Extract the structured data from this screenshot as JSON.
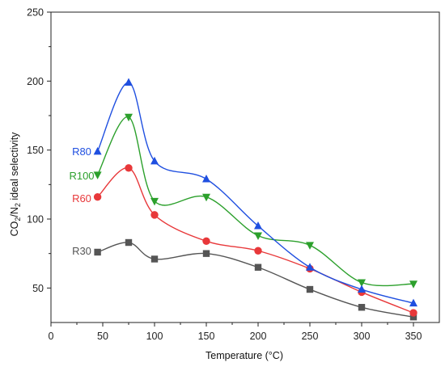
{
  "chart_data": {
    "type": "line",
    "xlabel": "Temperature (°C)",
    "ylabel": {
      "pre": "CO",
      "sub1": "2",
      "mid": "/N",
      "sub2": "2",
      "post": " ideal selectivity"
    },
    "xlim": [
      0,
      375
    ],
    "ylim": [
      25,
      250
    ],
    "xticks": [
      0,
      50,
      100,
      150,
      200,
      250,
      300,
      350
    ],
    "yticks": [
      50,
      100,
      150,
      200,
      250
    ],
    "grid": false,
    "legend": "none (series labeled inline)",
    "x": [
      45,
      75,
      100,
      150,
      200,
      250,
      300,
      350
    ],
    "series": [
      {
        "name": "R30",
        "color": "#555555",
        "marker": "square",
        "values": [
          76,
          83,
          71,
          75,
          65,
          49,
          36,
          29
        ]
      },
      {
        "name": "R60",
        "color": "#e8383a",
        "marker": "circle",
        "values": [
          116,
          137,
          103,
          84,
          77,
          64,
          47,
          32
        ]
      },
      {
        "name": "R100",
        "color": "#2ca02c",
        "marker": "triangle-down",
        "values": [
          132,
          174,
          113,
          116,
          88,
          81,
          54,
          53
        ]
      },
      {
        "name": "R80",
        "color": "#1f4fe0",
        "marker": "triangle-up",
        "values": [
          149,
          199,
          142,
          129,
          95,
          65,
          49,
          39
        ]
      }
    ]
  }
}
